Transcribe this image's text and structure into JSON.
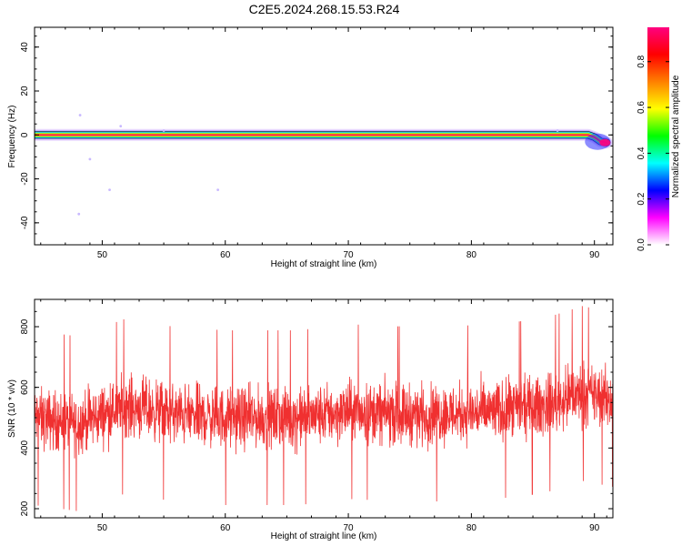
{
  "page_title": "C2E5.2024.268.15.53.R24",
  "chart_data": [
    {
      "type": "heatmap",
      "xlabel": "Height of straight line (km)",
      "ylabel": "Frequency (Hz)",
      "xlim": [
        44.5,
        91.5
      ],
      "ylim": [
        -50,
        49
      ],
      "x_ticks": [
        50,
        60,
        70,
        80,
        90
      ],
      "y_ticks": [
        -40,
        -20,
        0,
        20,
        40
      ],
      "colorbar": {
        "label": "Normalized spectral amplitude",
        "range": [
          0.0,
          0.95
        ],
        "ticks": [
          0.0,
          0.2,
          0.4,
          0.6,
          0.8
        ],
        "tick_labels": [
          "0.0",
          "0.2",
          "0.4",
          "0.6",
          "0.8"
        ],
        "colors": [
          "#ffffff",
          "#ff00ff",
          "#0000ff",
          "#00ffff",
          "#00ff00",
          "#ffff00",
          "#ff8000",
          "#ff0000",
          "#ff0080"
        ]
      },
      "ridge": [
        {
          "x": 44.5,
          "y": 0
        },
        {
          "x": 89.0,
          "y": 0
        },
        {
          "x": 89.5,
          "y": 0
        },
        {
          "x": 90.0,
          "y": -1
        },
        {
          "x": 90.5,
          "y": -3
        },
        {
          "x": 91.0,
          "y": -3.5
        }
      ],
      "scattered_points": [
        {
          "x": 48.2,
          "y": 9
        },
        {
          "x": 48.1,
          "y": -36
        },
        {
          "x": 49.0,
          "y": -11
        },
        {
          "x": 50.6,
          "y": -25
        },
        {
          "x": 59.4,
          "y": -25
        },
        {
          "x": 51.5,
          "y": 4
        },
        {
          "x": 55.0,
          "y": 2
        },
        {
          "x": 87.0,
          "y": 2
        }
      ]
    },
    {
      "type": "line",
      "xlabel": "Height of straight line (km)",
      "ylabel": "SNR (10 * v/v)",
      "xlim": [
        44.5,
        91.5
      ],
      "ylim": [
        170,
        890
      ],
      "x_ticks": [
        50,
        60,
        70,
        80,
        90
      ],
      "y_ticks": [
        200,
        400,
        600,
        800
      ],
      "color": "#f03030",
      "series": [
        {
          "x_start": 44.5,
          "x_end": 91.5,
          "trend": [
            {
              "x": 44.5,
              "y": 500
            },
            {
              "x": 48,
              "y": 480
            },
            {
              "x": 52,
              "y": 540
            },
            {
              "x": 56,
              "y": 510
            },
            {
              "x": 60,
              "y": 500
            },
            {
              "x": 66,
              "y": 500
            },
            {
              "x": 70,
              "y": 520
            },
            {
              "x": 76,
              "y": 510
            },
            {
              "x": 82,
              "y": 520
            },
            {
              "x": 86,
              "y": 540
            },
            {
              "x": 89,
              "y": 580
            },
            {
              "x": 91.5,
              "y": 560
            }
          ],
          "spread": 90,
          "max": 880,
          "min": 180
        }
      ]
    }
  ]
}
